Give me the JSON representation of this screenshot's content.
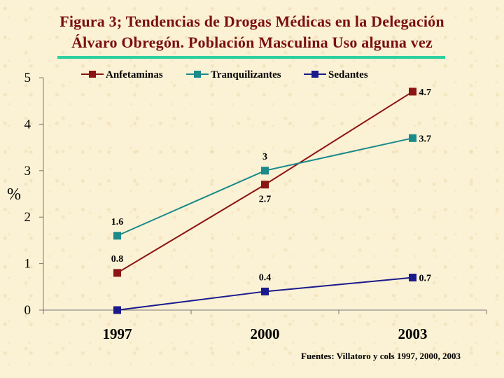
{
  "title": {
    "line1": "Figura 3; Tendencias de Drogas Médicas en  la Delegación",
    "line2": "Álvaro Obregón. Población Masculina Uso alguna vez"
  },
  "source": "Fuentes: Villatoro y cols 1997, 2000, 2003",
  "colors": {
    "title": "#7a0f0f",
    "rule": "#2fd0a0",
    "background": "#fbf1d4"
  },
  "chart_data": {
    "type": "line",
    "title": "Figura 3; Tendencias de Drogas Médicas en  la Delegación Álvaro Obregón. Población Masculina Uso alguna vez",
    "xlabel": "",
    "ylabel": "%",
    "categories": [
      "1997",
      "2000",
      "2003"
    ],
    "ylim": [
      0,
      5
    ],
    "yticks": [
      0,
      1,
      2,
      3,
      4,
      5
    ],
    "grid": false,
    "legend": "top",
    "series": [
      {
        "name": "Anfetaminas",
        "color": "#8b1414",
        "values": [
          0.8,
          2.7,
          4.7
        ],
        "labels": [
          "0.8",
          "2.7",
          "4.7"
        ],
        "label_pos": [
          "above",
          "below",
          "right"
        ]
      },
      {
        "name": "Tranquilizantes",
        "color": "#1a8a8a",
        "values": [
          1.6,
          3,
          3.7
        ],
        "labels": [
          "1.6",
          "3",
          "3.7"
        ],
        "label_pos": [
          "above",
          "above",
          "right"
        ]
      },
      {
        "name": "Sedantes",
        "color": "#1a1a8c",
        "values": [
          0,
          0.4,
          0.7
        ],
        "labels": [
          "",
          "0.4",
          "0.7"
        ],
        "label_pos": [
          "none",
          "above",
          "right"
        ]
      }
    ]
  }
}
